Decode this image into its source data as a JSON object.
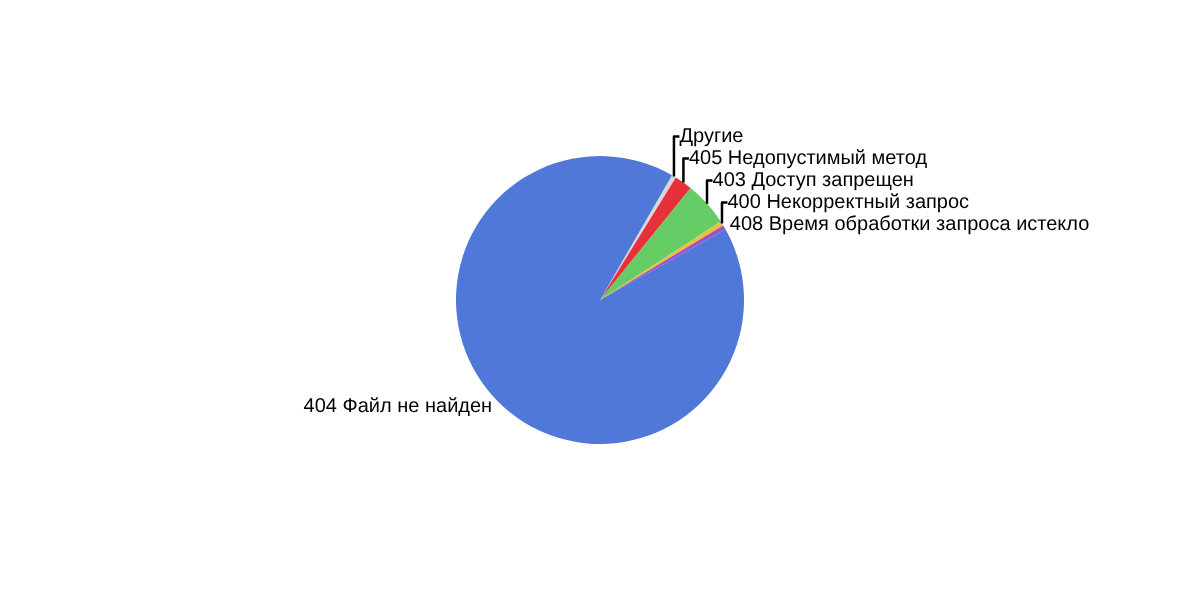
{
  "chart_data": {
    "type": "pie",
    "categories": [
      "Другие",
      "405 Недопустимый метод",
      "403 Доступ запрещен",
      "400 Некорректный запрос",
      "408 Время обработки запроса истекло",
      "404 Файл не найден"
    ],
    "values": [
      0.5,
      2,
      5,
      0.5,
      0.5,
      91.5
    ],
    "colors": [
      "#d8d8d8",
      "#e8303a",
      "#66cc66",
      "#e8c040",
      "#a050c0",
      "#5078d8"
    ],
    "legend": false
  }
}
